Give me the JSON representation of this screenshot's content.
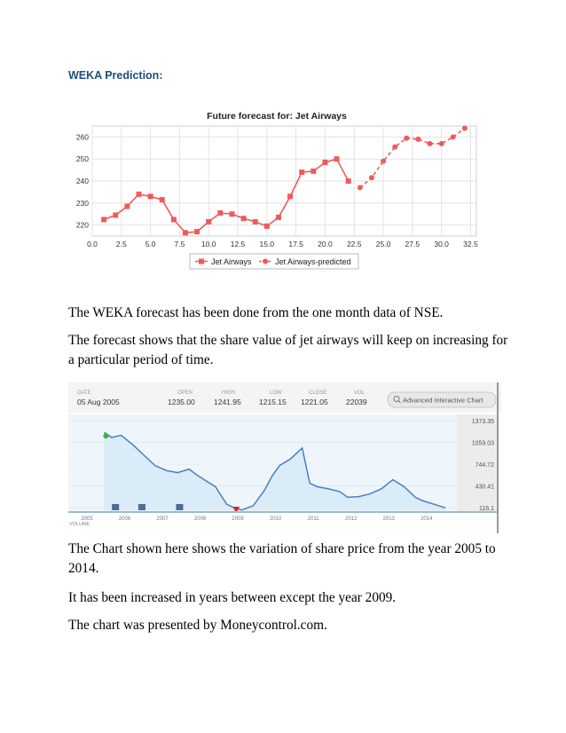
{
  "heading": "WEKA Prediction:",
  "paragraphs": {
    "p1": "The WEKA forecast has been done from the one month data of NSE.",
    "p2": "The forecast shows that the share value of jet airways will keep on increasing for a particular period of time.",
    "p3": "The Chart shown here shows the variation of share price from the year 2005 to 2014.",
    "p4": "It has been increased in years between except the year 2009.",
    "p5": "The chart was presented by Moneycontrol.com."
  },
  "chart_data": [
    {
      "type": "line",
      "title": "Future forecast for: Jet Airways",
      "xlim": [
        0,
        33
      ],
      "ylim": [
        215,
        265
      ],
      "xticks": [
        "0.0",
        "2.5",
        "5.0",
        "7.5",
        "10.0",
        "12.5",
        "15.0",
        "17.5",
        "20.0",
        "22.5",
        "25.0",
        "27.5",
        "30.0",
        "32.5"
      ],
      "yticks": [
        "220",
        "230",
        "240",
        "250",
        "260"
      ],
      "series": [
        {
          "name": "Jet Airways",
          "color": "#f05a5a",
          "marker": "square",
          "style": "solid",
          "x": [
            1,
            2,
            3,
            4,
            5,
            6,
            7,
            8,
            9,
            10,
            11,
            12,
            13,
            14,
            15,
            16,
            17,
            18,
            19,
            20,
            21,
            22
          ],
          "y": [
            222.5,
            224.5,
            228.5,
            234,
            233,
            231.5,
            222.5,
            216.5,
            217,
            221.5,
            225.5,
            225,
            223,
            221.5,
            219.5,
            223.5,
            233,
            244,
            244.5,
            248.5,
            250,
            240
          ]
        },
        {
          "name": "Jet Airways-predicted",
          "color": "#f05a5a",
          "marker": "circle",
          "style": "dashed",
          "x": [
            23,
            24,
            25,
            26,
            27,
            28,
            29,
            30,
            31,
            32
          ],
          "y": [
            237,
            241.5,
            249,
            255.5,
            259.5,
            259,
            257,
            257,
            260,
            264
          ]
        }
      ],
      "legend_position": "bottom"
    },
    {
      "type": "area",
      "header": {
        "date_label": "DATE",
        "date_value": "05 Aug 2005",
        "open_label": "OPEN",
        "open_value": "1235.00",
        "high_label": "HIGH",
        "high_value": "1241.95",
        "low_label": "LOW",
        "low_value": "1215.15",
        "close_label": "CLOSE",
        "close_value": "1221.05",
        "vol_label": "VOL",
        "vol_value": "22039",
        "button_label": "Advanced Interactive Chart"
      },
      "ylabels": [
        "1373.35",
        "1059.03",
        "744.72",
        "430.41",
        "116.1"
      ],
      "ylim": [
        116.1,
        1373.35
      ],
      "x_labels": [
        "2005",
        "2006",
        "2007",
        "2008",
        "2009",
        "2010",
        "2011",
        "2012",
        "2013",
        "2014"
      ],
      "volume_label": "VOLUME",
      "x": [
        2005.55,
        2005.75,
        2006.0,
        2006.3,
        2006.6,
        2006.9,
        2007.2,
        2007.5,
        2007.8,
        2008.0,
        2008.2,
        2008.5,
        2008.8,
        2009.0,
        2009.2,
        2009.5,
        2009.8,
        2010.0,
        2010.2,
        2010.5,
        2010.8,
        2011.0,
        2011.2,
        2011.5,
        2011.8,
        2012.0,
        2012.3,
        2012.6,
        2012.9,
        2013.2,
        2013.5,
        2013.8,
        2014.0,
        2014.3,
        2014.6
      ],
      "values": [
        1221,
        1150,
        1180,
        1050,
        900,
        750,
        680,
        650,
        700,
        620,
        550,
        450,
        200,
        150,
        120,
        180,
        400,
        600,
        750,
        850,
        1000,
        500,
        450,
        420,
        380,
        300,
        310,
        350,
        420,
        550,
        450,
        300,
        250,
        200,
        150
      ],
      "color": "#4a7fc1"
    }
  ]
}
